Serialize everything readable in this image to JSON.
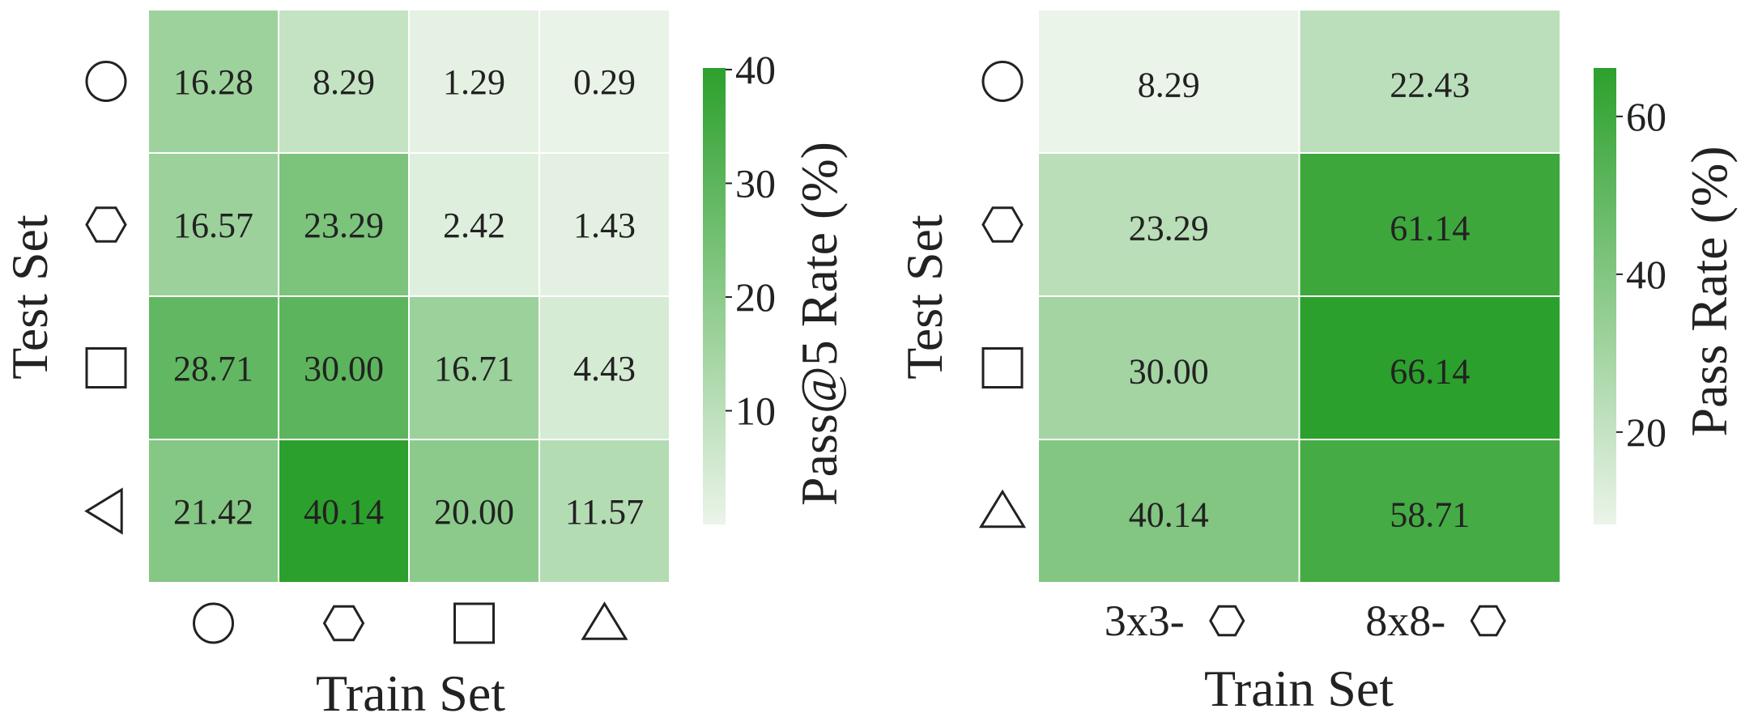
{
  "colors": {
    "low": "#ebf4e9",
    "high": "#2ca02c",
    "dark_text": "#222222",
    "light_text": "#ffffff",
    "grid": "#ffffff"
  },
  "chart_data": [
    {
      "type": "heatmap",
      "xlabel": "Train Set",
      "ylabel": "Test Set",
      "x_categories": [
        "circle",
        "hexagon",
        "square",
        "triangle-up"
      ],
      "y_categories": [
        "circle",
        "hexagon",
        "square",
        "triangle-left"
      ],
      "values": [
        [
          16.28,
          8.29,
          1.29,
          0.29
        ],
        [
          16.57,
          23.29,
          2.42,
          1.43
        ],
        [
          28.71,
          30.0,
          16.71,
          4.43
        ],
        [
          21.42,
          40.14,
          20.0,
          11.57
        ]
      ],
      "labels": [
        [
          "16.28",
          "8.29",
          "1.29",
          "0.29"
        ],
        [
          "16.57",
          "23.29",
          "2.42",
          "1.43"
        ],
        [
          "28.71",
          "30.00",
          "16.71",
          "4.43"
        ],
        [
          "21.42",
          "40.14",
          "20.00",
          "11.57"
        ]
      ],
      "colorbar": {
        "label": "Pass@5 Rate (%)",
        "vmin": 0,
        "vmax": 40.14,
        "ticks": [
          10,
          20,
          30,
          40
        ],
        "tick_labels": [
          "10",
          "20",
          "30",
          "40"
        ]
      },
      "light_text_threshold": 25
    },
    {
      "type": "heatmap",
      "xlabel": "Train Set",
      "ylabel": "Test Set",
      "x_categories": [
        "3x3-",
        "8x8-"
      ],
      "x_category_icons": [
        "hexagon",
        "hexagon"
      ],
      "y_categories": [
        "circle",
        "hexagon",
        "square",
        "triangle-up"
      ],
      "values": [
        [
          8.29,
          22.43
        ],
        [
          23.29,
          61.14
        ],
        [
          30.0,
          66.14
        ],
        [
          40.14,
          58.71
        ]
      ],
      "labels": [
        [
          "8.29",
          "22.43"
        ],
        [
          "23.29",
          "61.14"
        ],
        [
          "30.00",
          "66.14"
        ],
        [
          "40.14",
          "58.71"
        ]
      ],
      "colorbar": {
        "label": "Pass Rate (%)",
        "vmin": 8.29,
        "vmax": 66.14,
        "ticks": [
          20,
          40,
          60
        ],
        "tick_labels": [
          "20",
          "40",
          "60"
        ]
      },
      "light_text_threshold": 50
    }
  ]
}
